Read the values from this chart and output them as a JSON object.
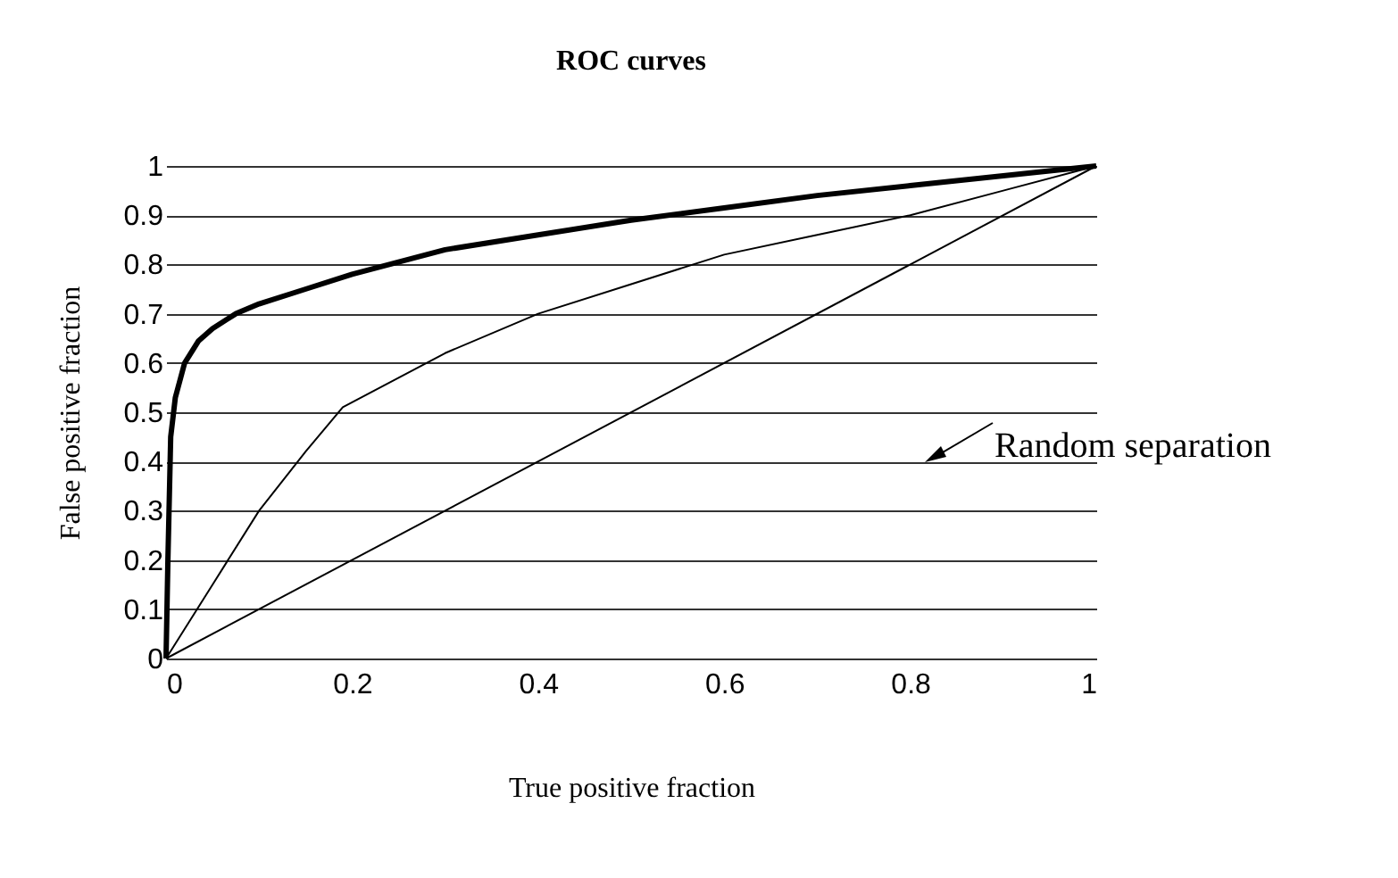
{
  "chart_data": {
    "type": "line",
    "title": "ROC curves",
    "xlabel": "True positive fraction",
    "ylabel": "False positive fraction",
    "xlim": [
      0,
      1
    ],
    "xticks": [
      0,
      0.2,
      0.4,
      0.6,
      0.8,
      1
    ],
    "ylim": [
      0,
      1
    ],
    "yticks": [
      0,
      0.1,
      0.2,
      0.3,
      0.4,
      0.5,
      0.6,
      0.7,
      0.8,
      0.9,
      1
    ],
    "grid": "y",
    "marker": "none",
    "annotations": [
      "Random separation"
    ],
    "series": [
      {
        "color": "#000000",
        "x": [
          0,
          0.002,
          0.005,
          0.01,
          0.02,
          0.035,
          0.05,
          0.075,
          0.1,
          0.15,
          0.2,
          0.3,
          0.4,
          0.5,
          0.6,
          0.7,
          0.8,
          0.9,
          1
        ],
        "values": [
          0,
          0.2,
          0.45,
          0.53,
          0.6,
          0.645,
          0.67,
          0.7,
          0.72,
          0.75,
          0.78,
          0.83,
          0.86,
          0.89,
          0.915,
          0.94,
          0.96,
          0.98,
          1
        ]
      },
      {
        "color": "#000000",
        "x": [
          0,
          0.05,
          0.1,
          0.15,
          0.19,
          0.3,
          0.4,
          0.5,
          0.6,
          0.7,
          0.8,
          0.9,
          1
        ],
        "values": [
          0,
          0.15,
          0.3,
          0.42,
          0.51,
          0.62,
          0.7,
          0.76,
          0.82,
          0.86,
          0.9,
          0.95,
          1
        ]
      },
      {
        "color": "#000000",
        "x": [
          0,
          1
        ],
        "values": [
          0,
          1
        ]
      }
    ]
  }
}
